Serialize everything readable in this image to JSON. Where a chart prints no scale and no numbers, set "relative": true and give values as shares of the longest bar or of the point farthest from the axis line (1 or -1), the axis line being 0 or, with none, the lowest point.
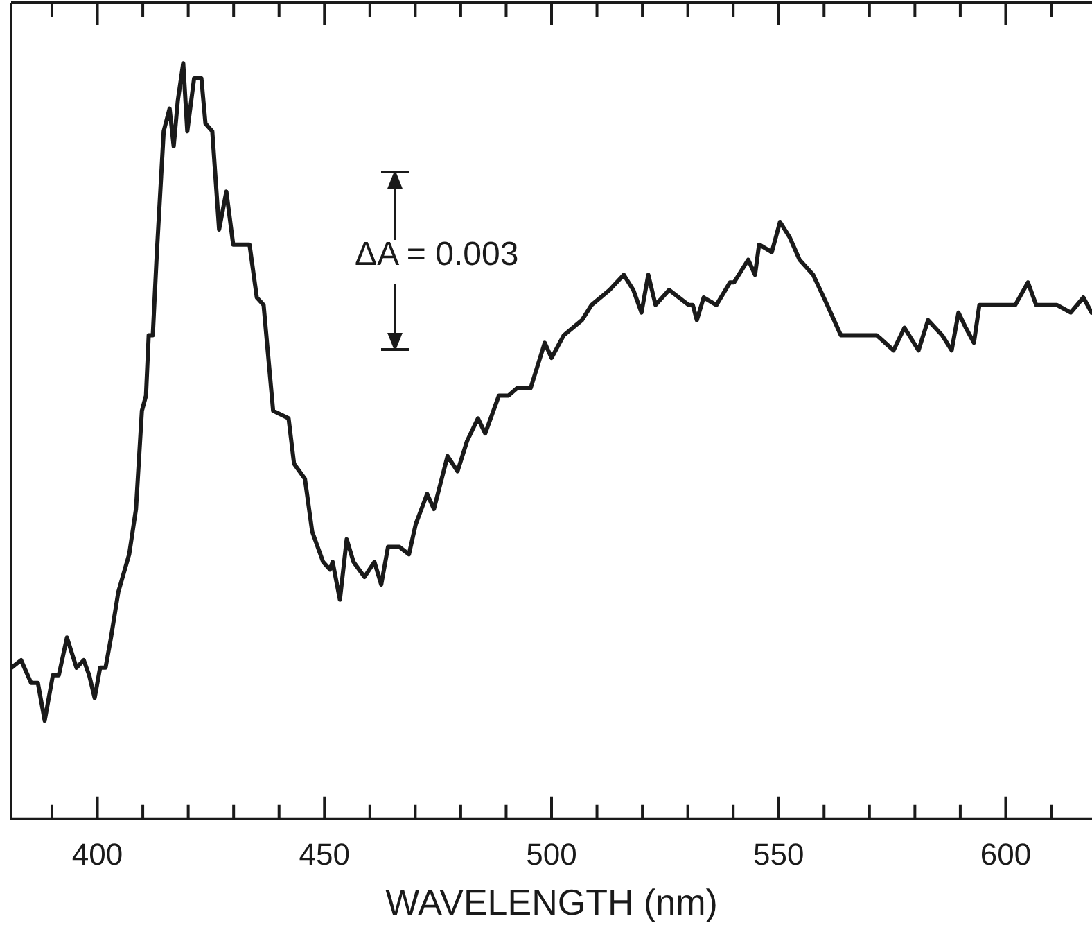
{
  "chart_data": {
    "type": "line",
    "relative": true,
    "xlabel": "WAVELENGTH (nm)",
    "annotations": [
      "ΔA = 0.003"
    ],
    "xlim": [
      381,
      619
    ],
    "xticks": [
      {
        "value": 390,
        "label": null
      },
      400,
      {
        "value": 410,
        "label": null
      },
      {
        "value": 420,
        "label": null
      },
      {
        "value": 430,
        "label": null
      },
      {
        "value": 440,
        "label": null
      },
      450,
      {
        "value": 460,
        "label": null
      },
      {
        "value": 470,
        "label": null
      },
      {
        "value": 480,
        "label": null
      },
      {
        "value": 490,
        "label": null
      },
      500,
      {
        "value": 510,
        "label": null
      },
      {
        "value": 520,
        "label": null
      },
      {
        "value": 530,
        "label": null
      },
      {
        "value": 540,
        "label": null
      },
      550,
      {
        "value": 560,
        "label": null
      },
      {
        "value": 570,
        "label": null
      },
      {
        "value": 580,
        "label": null
      },
      {
        "value": 590,
        "label": null
      },
      600,
      {
        "value": 610,
        "label": null
      }
    ],
    "grid": false,
    "legend": false,
    "marker": "none",
    "line_style": "solid",
    "tick_labels": "x",
    "series": [
      {
        "color": "#1a1a1a",
        "x": [
          381.1,
          383.2,
          385.4,
          386.9,
          388.4,
          390.2,
          391.5,
          393.3,
          395.4,
          397.0,
          398.2,
          399.4,
          400.6,
          401.8,
          403.0,
          404.6,
          407.0,
          408.5,
          409.8,
          410.7,
          411.3,
          412.2,
          413.1,
          414.6,
          415.9,
          416.8,
          417.7,
          418.9,
          419.8,
          421.3,
          422.9,
          423.8,
          425.3,
          426.8,
          428.4,
          429.9,
          433.5,
          435.1,
          436.6,
          438.7,
          442.1,
          443.3,
          445.7,
          447.3,
          449.7,
          451.2,
          451.8,
          453.4,
          454.9,
          456.4,
          458.8,
          461.0,
          462.5,
          464.0,
          466.5,
          468.6,
          470.1,
          472.6,
          474.1,
          477.1,
          479.3,
          481.4,
          483.8,
          485.4,
          488.4,
          490.5,
          492.4,
          495.4,
          498.5,
          500.0,
          502.7,
          506.7,
          508.8,
          512.8,
          515.9,
          518.0,
          519.8,
          521.3,
          522.9,
          525.9,
          530.2,
          531.1,
          532.0,
          533.5,
          536.3,
          539.3,
          540.2,
          543.3,
          544.8,
          545.7,
          548.5,
          550.3,
          552.4,
          554.6,
          557.6,
          560.7,
          563.7,
          567.7,
          571.6,
          575.3,
          577.7,
          580.8,
          582.9,
          586.0,
          588.1,
          589.6,
          591.2,
          593.0,
          594.2,
          602.1,
          604.9,
          606.7,
          611.3,
          614.3,
          617.1,
          618.9
        ],
        "values": [
          0.2,
          0.21,
          0.18,
          0.18,
          0.13,
          0.19,
          0.19,
          0.24,
          0.2,
          0.21,
          0.19,
          0.16,
          0.2,
          0.2,
          0.24,
          0.3,
          0.35,
          0.41,
          0.54,
          0.56,
          0.64,
          0.64,
          0.75,
          0.91,
          0.94,
          0.89,
          0.95,
          1.0,
          0.91,
          0.98,
          0.98,
          0.92,
          0.91,
          0.78,
          0.83,
          0.76,
          0.76,
          0.69,
          0.68,
          0.54,
          0.53,
          0.47,
          0.45,
          0.38,
          0.34,
          0.33,
          0.34,
          0.29,
          0.37,
          0.34,
          0.32,
          0.34,
          0.31,
          0.36,
          0.36,
          0.35,
          0.39,
          0.43,
          0.41,
          0.48,
          0.46,
          0.5,
          0.53,
          0.51,
          0.56,
          0.56,
          0.57,
          0.57,
          0.63,
          0.61,
          0.64,
          0.66,
          0.68,
          0.7,
          0.72,
          0.7,
          0.67,
          0.72,
          0.68,
          0.7,
          0.68,
          0.68,
          0.66,
          0.69,
          0.68,
          0.71,
          0.71,
          0.74,
          0.72,
          0.76,
          0.75,
          0.79,
          0.77,
          0.74,
          0.72,
          0.68,
          0.64,
          0.64,
          0.64,
          0.62,
          0.65,
          0.62,
          0.66,
          0.64,
          0.62,
          0.67,
          0.65,
          0.63,
          0.68,
          0.68,
          0.71,
          0.68,
          0.68,
          0.67,
          0.69,
          0.67
        ]
      }
    ]
  }
}
